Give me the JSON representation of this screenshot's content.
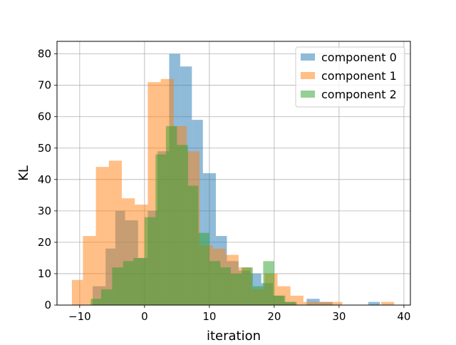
{
  "chart_data": {
    "type": "bar",
    "title": "",
    "xlabel": "iteration",
    "ylabel": "KL",
    "xlim": [
      -13.5,
      41
    ],
    "ylim": [
      0,
      84
    ],
    "x_ticks": [
      -10,
      0,
      10,
      20,
      30,
      40
    ],
    "y_ticks": [
      0,
      10,
      20,
      30,
      40,
      50,
      60,
      70,
      80
    ],
    "grid": true,
    "legend_position": "top-right",
    "alpha": 0.5,
    "series": [
      {
        "name": "component 0",
        "color": "#1f77b4",
        "bins": [
          {
            "x0": -8.0,
            "x1": -6.0,
            "value": 6
          },
          {
            "x0": -6.0,
            "x1": -4.5,
            "value": 18
          },
          {
            "x0": -4.5,
            "x1": -3.0,
            "value": 30
          },
          {
            "x0": -3.0,
            "x1": -1.0,
            "value": 27
          },
          {
            "x0": -1.0,
            "x1": 0.5,
            "value": 15
          },
          {
            "x0": 0.5,
            "x1": 2.0,
            "value": 30
          },
          {
            "x0": 2.0,
            "x1": 3.8,
            "value": 49
          },
          {
            "x0": 3.8,
            "x1": 5.5,
            "value": 80
          },
          {
            "x0": 5.5,
            "x1": 7.3,
            "value": 76
          },
          {
            "x0": 7.3,
            "x1": 9.0,
            "value": 59
          },
          {
            "x0": 9.0,
            "x1": 11.0,
            "value": 42
          },
          {
            "x0": 11.0,
            "x1": 12.7,
            "value": 22
          },
          {
            "x0": 12.7,
            "x1": 14.5,
            "value": 14
          },
          {
            "x0": 14.5,
            "x1": 16.3,
            "value": 11
          },
          {
            "x0": 16.3,
            "x1": 18.0,
            "value": 10
          },
          {
            "x0": 18.0,
            "x1": 19.8,
            "value": 7
          },
          {
            "x0": 19.8,
            "x1": 21.5,
            "value": 3
          },
          {
            "x0": 21.5,
            "x1": 23.5,
            "value": 1
          },
          {
            "x0": 25.0,
            "x1": 27.0,
            "value": 2
          },
          {
            "x0": 27.0,
            "x1": 29.0,
            "value": 1
          },
          {
            "x0": 34.5,
            "x1": 36.3,
            "value": 1
          }
        ]
      },
      {
        "name": "component 1",
        "color": "#ff7f0e",
        "bins": [
          {
            "x0": -11.2,
            "x1": -9.5,
            "value": 8
          },
          {
            "x0": -9.5,
            "x1": -7.5,
            "value": 22
          },
          {
            "x0": -7.5,
            "x1": -5.5,
            "value": 44
          },
          {
            "x0": -5.5,
            "x1": -3.5,
            "value": 46
          },
          {
            "x0": -3.5,
            "x1": -1.5,
            "value": 34
          },
          {
            "x0": -1.5,
            "x1": 0.5,
            "value": 32
          },
          {
            "x0": 0.5,
            "x1": 2.5,
            "value": 71
          },
          {
            "x0": 2.5,
            "x1": 4.5,
            "value": 72
          },
          {
            "x0": 4.5,
            "x1": 6.5,
            "value": 57
          },
          {
            "x0": 6.5,
            "x1": 8.5,
            "value": 49
          },
          {
            "x0": 8.5,
            "x1": 10.5,
            "value": 19
          },
          {
            "x0": 10.5,
            "x1": 12.5,
            "value": 18
          },
          {
            "x0": 12.5,
            "x1": 14.5,
            "value": 16
          },
          {
            "x0": 14.5,
            "x1": 16.5,
            "value": 12
          },
          {
            "x0": 16.5,
            "x1": 18.5,
            "value": 5
          },
          {
            "x0": 18.5,
            "x1": 20.5,
            "value": 10
          },
          {
            "x0": 20.5,
            "x1": 22.5,
            "value": 6
          },
          {
            "x0": 22.5,
            "x1": 24.5,
            "value": 3
          },
          {
            "x0": 24.5,
            "x1": 26.5,
            "value": 1
          },
          {
            "x0": 26.5,
            "x1": 28.5,
            "value": 1
          },
          {
            "x0": 28.5,
            "x1": 30.5,
            "value": 1
          },
          {
            "x0": 36.5,
            "x1": 38.5,
            "value": 1
          }
        ]
      },
      {
        "name": "component 2",
        "color": "#2ca02c",
        "bins": [
          {
            "x0": -8.3,
            "x1": -6.7,
            "value": 2
          },
          {
            "x0": -6.7,
            "x1": -5.0,
            "value": 5
          },
          {
            "x0": -5.0,
            "x1": -3.3,
            "value": 12
          },
          {
            "x0": -3.3,
            "x1": -1.7,
            "value": 14
          },
          {
            "x0": -1.7,
            "x1": 0.0,
            "value": 15
          },
          {
            "x0": 0.0,
            "x1": 1.7,
            "value": 28
          },
          {
            "x0": 1.7,
            "x1": 3.3,
            "value": 48
          },
          {
            "x0": 3.3,
            "x1": 5.0,
            "value": 57
          },
          {
            "x0": 5.0,
            "x1": 6.7,
            "value": 51
          },
          {
            "x0": 6.7,
            "x1": 8.3,
            "value": 38
          },
          {
            "x0": 8.3,
            "x1": 10.0,
            "value": 23
          },
          {
            "x0": 10.0,
            "x1": 11.7,
            "value": 14
          },
          {
            "x0": 11.7,
            "x1": 13.3,
            "value": 12
          },
          {
            "x0": 13.3,
            "x1": 15.0,
            "value": 10
          },
          {
            "x0": 15.0,
            "x1": 16.7,
            "value": 12
          },
          {
            "x0": 16.7,
            "x1": 18.3,
            "value": 6
          },
          {
            "x0": 18.3,
            "x1": 20.0,
            "value": 14
          },
          {
            "x0": 20.0,
            "x1": 21.7,
            "value": 3
          },
          {
            "x0": 21.7,
            "x1": 23.3,
            "value": 1
          }
        ]
      }
    ]
  }
}
